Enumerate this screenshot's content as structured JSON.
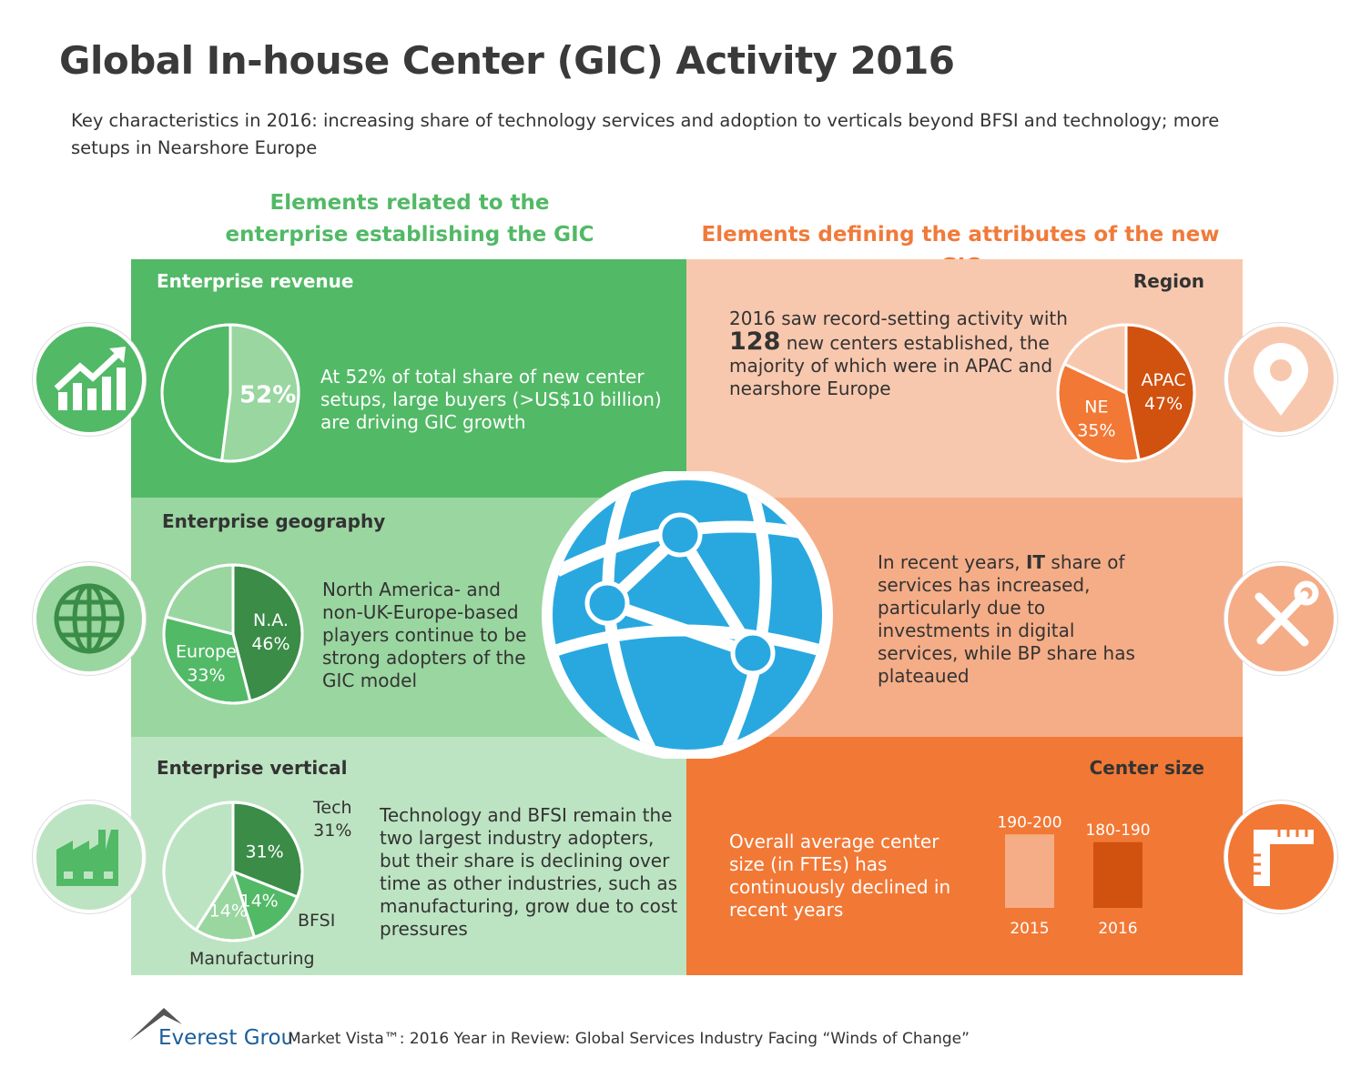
{
  "title": "Global In-house Center (GIC) Activity 2016",
  "subtitle": "Key characteristics in 2016: increasing share of technology services and adoption to verticals beyond BFSI and technology; more setups in Nearshore Europe",
  "left_heading": "Elements related to the enterprise establishing the GIC",
  "right_heading": "Elements defining the attributes of the new GIC",
  "colors": {
    "green_dark": "#3a8c47",
    "green": "#52b966",
    "green_light": "#9ad6a0",
    "green_pale": "#bde4c2",
    "orange_dark": "#d1510f",
    "orange": "#f27835",
    "orange_mid": "#f5ad87",
    "orange_light": "#f8c8ae",
    "globe_blue": "#29a8e0"
  },
  "panels": {
    "revenue": {
      "title": "Enterprise revenue",
      "text": "At 52% of total share of new center setups, large buyers (>US$10 billion) are driving GIC growth",
      "icon": "trend-chart-icon"
    },
    "geography": {
      "title": "Enterprise geography",
      "text": "North America- and non-UK-Europe-based players continue to be strong adopters of the GIC model",
      "icon": "globe-icon"
    },
    "vertical": {
      "title": "Enterprise vertical",
      "text": "Technology and BFSI remain the two largest industry adopters, but their share is declining over time as other industries, such as manufacturing, grow due to cost pressures",
      "icon": "factory-icon",
      "outer_labels": {
        "tech": "Tech",
        "tech_pct": "31%",
        "bfsi": "BFSI",
        "manufacturing": "Manufacturing"
      }
    },
    "region": {
      "title": "Region",
      "text_pre": "2016 saw record-setting activity with",
      "big_number": "128",
      "text_post": "new centers established, the majority of which were in APAC and nearshore Europe",
      "icon": "location-pin-icon"
    },
    "services": {
      "text_pre": "In recent years,",
      "bold": "IT",
      "text_post": "share of services has increased, particularly due to investments in digital services, while BP share has plateaued",
      "icon": "tools-icon"
    },
    "center_size": {
      "title": "Center size",
      "text": "Overall average center size (in FTEs) has continuously declined in recent years",
      "icon": "ruler-icon"
    }
  },
  "chart_data": [
    {
      "type": "pie",
      "id": "revenue",
      "slices": [
        {
          "label": "52%",
          "value": 52,
          "color": "#9ad6a0"
        },
        {
          "label": "",
          "value": 48,
          "color": "#52b966"
        }
      ]
    },
    {
      "type": "pie",
      "id": "geography",
      "slices": [
        {
          "label": "N.A.",
          "pct": "46%",
          "value": 46,
          "color": "#3a8c47"
        },
        {
          "label": "Europe",
          "pct": "33%",
          "value": 33,
          "color": "#52b966"
        },
        {
          "label": "",
          "value": 21,
          "color": "#9ad6a0"
        }
      ]
    },
    {
      "type": "pie",
      "id": "vertical",
      "slices": [
        {
          "label": "31%",
          "value": 31,
          "color": "#3a8c47"
        },
        {
          "label": "14%",
          "value": 14,
          "color": "#52b966"
        },
        {
          "label": "14%",
          "value": 14,
          "color": "#9ad6a0"
        },
        {
          "label": "",
          "value": 41,
          "color": "#bde4c2"
        }
      ]
    },
    {
      "type": "pie",
      "id": "region",
      "slices": [
        {
          "label": "APAC",
          "pct": "47%",
          "value": 47,
          "color": "#d1510f"
        },
        {
          "label": "NE",
          "pct": "35%",
          "value": 35,
          "color": "#f27835"
        },
        {
          "label": "",
          "value": 18,
          "color": "#f8c8ae"
        }
      ]
    },
    {
      "type": "bar",
      "id": "center_size",
      "categories": [
        "2015",
        "2016"
      ],
      "labels": [
        "190-200",
        "180-190"
      ],
      "values": [
        195,
        185
      ],
      "colors": [
        "#f5ad87",
        "#d1510f"
      ]
    }
  ],
  "footer": {
    "logo": "Everest Group",
    "text": "Market Vista™: 2016 Year in Review: Global Services Industry Facing “Winds of Change”"
  }
}
